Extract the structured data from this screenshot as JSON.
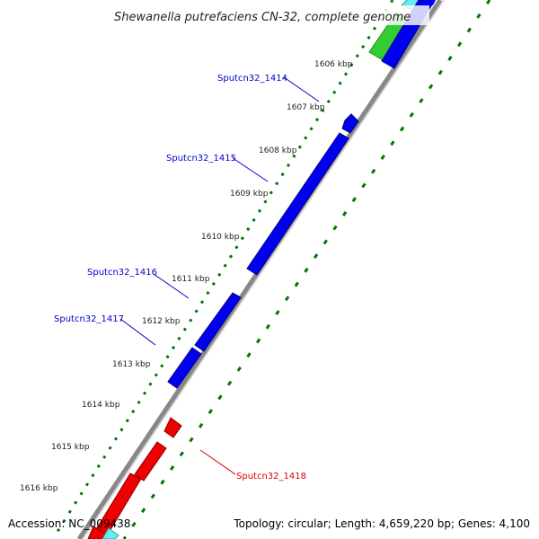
{
  "title": "Shewanella putrefaciens CN-32, complete genome",
  "ticks": [
    {
      "label": "1606 kbp"
    },
    {
      "label": "1607 kbp"
    },
    {
      "label": "1608 kbp"
    },
    {
      "label": "1609 kbp"
    },
    {
      "label": "1610 kbp"
    },
    {
      "label": "1611 kbp"
    },
    {
      "label": "1612 kbp"
    },
    {
      "label": "1613 kbp"
    },
    {
      "label": "1614 kbp"
    },
    {
      "label": "1615 kbp"
    },
    {
      "label": "1616 kbp"
    }
  ],
  "genes": [
    {
      "label": "Sputcn32_1414",
      "color": "#0000c8"
    },
    {
      "label": "Sputcn32_1415",
      "color": "#0000c8"
    },
    {
      "label": "Sputcn32_1416",
      "color": "#0000c8"
    },
    {
      "label": "Sputcn32_1417",
      "color": "#0000c8"
    },
    {
      "label": "Sputcn32_1418",
      "color": "#dd0000"
    }
  ],
  "colors": {
    "forward_strand": "#0000ee",
    "reverse_strand": "#ee0000",
    "gc_track": "#007700",
    "backbone": "#888888",
    "other_feature": "#33cc33",
    "other_feature_2": "#33dddd"
  },
  "footer": {
    "accession": "Accession: NC_009438",
    "topology": "Topology: circular; Length: 4,659,220 bp; Genes: 4,100"
  }
}
